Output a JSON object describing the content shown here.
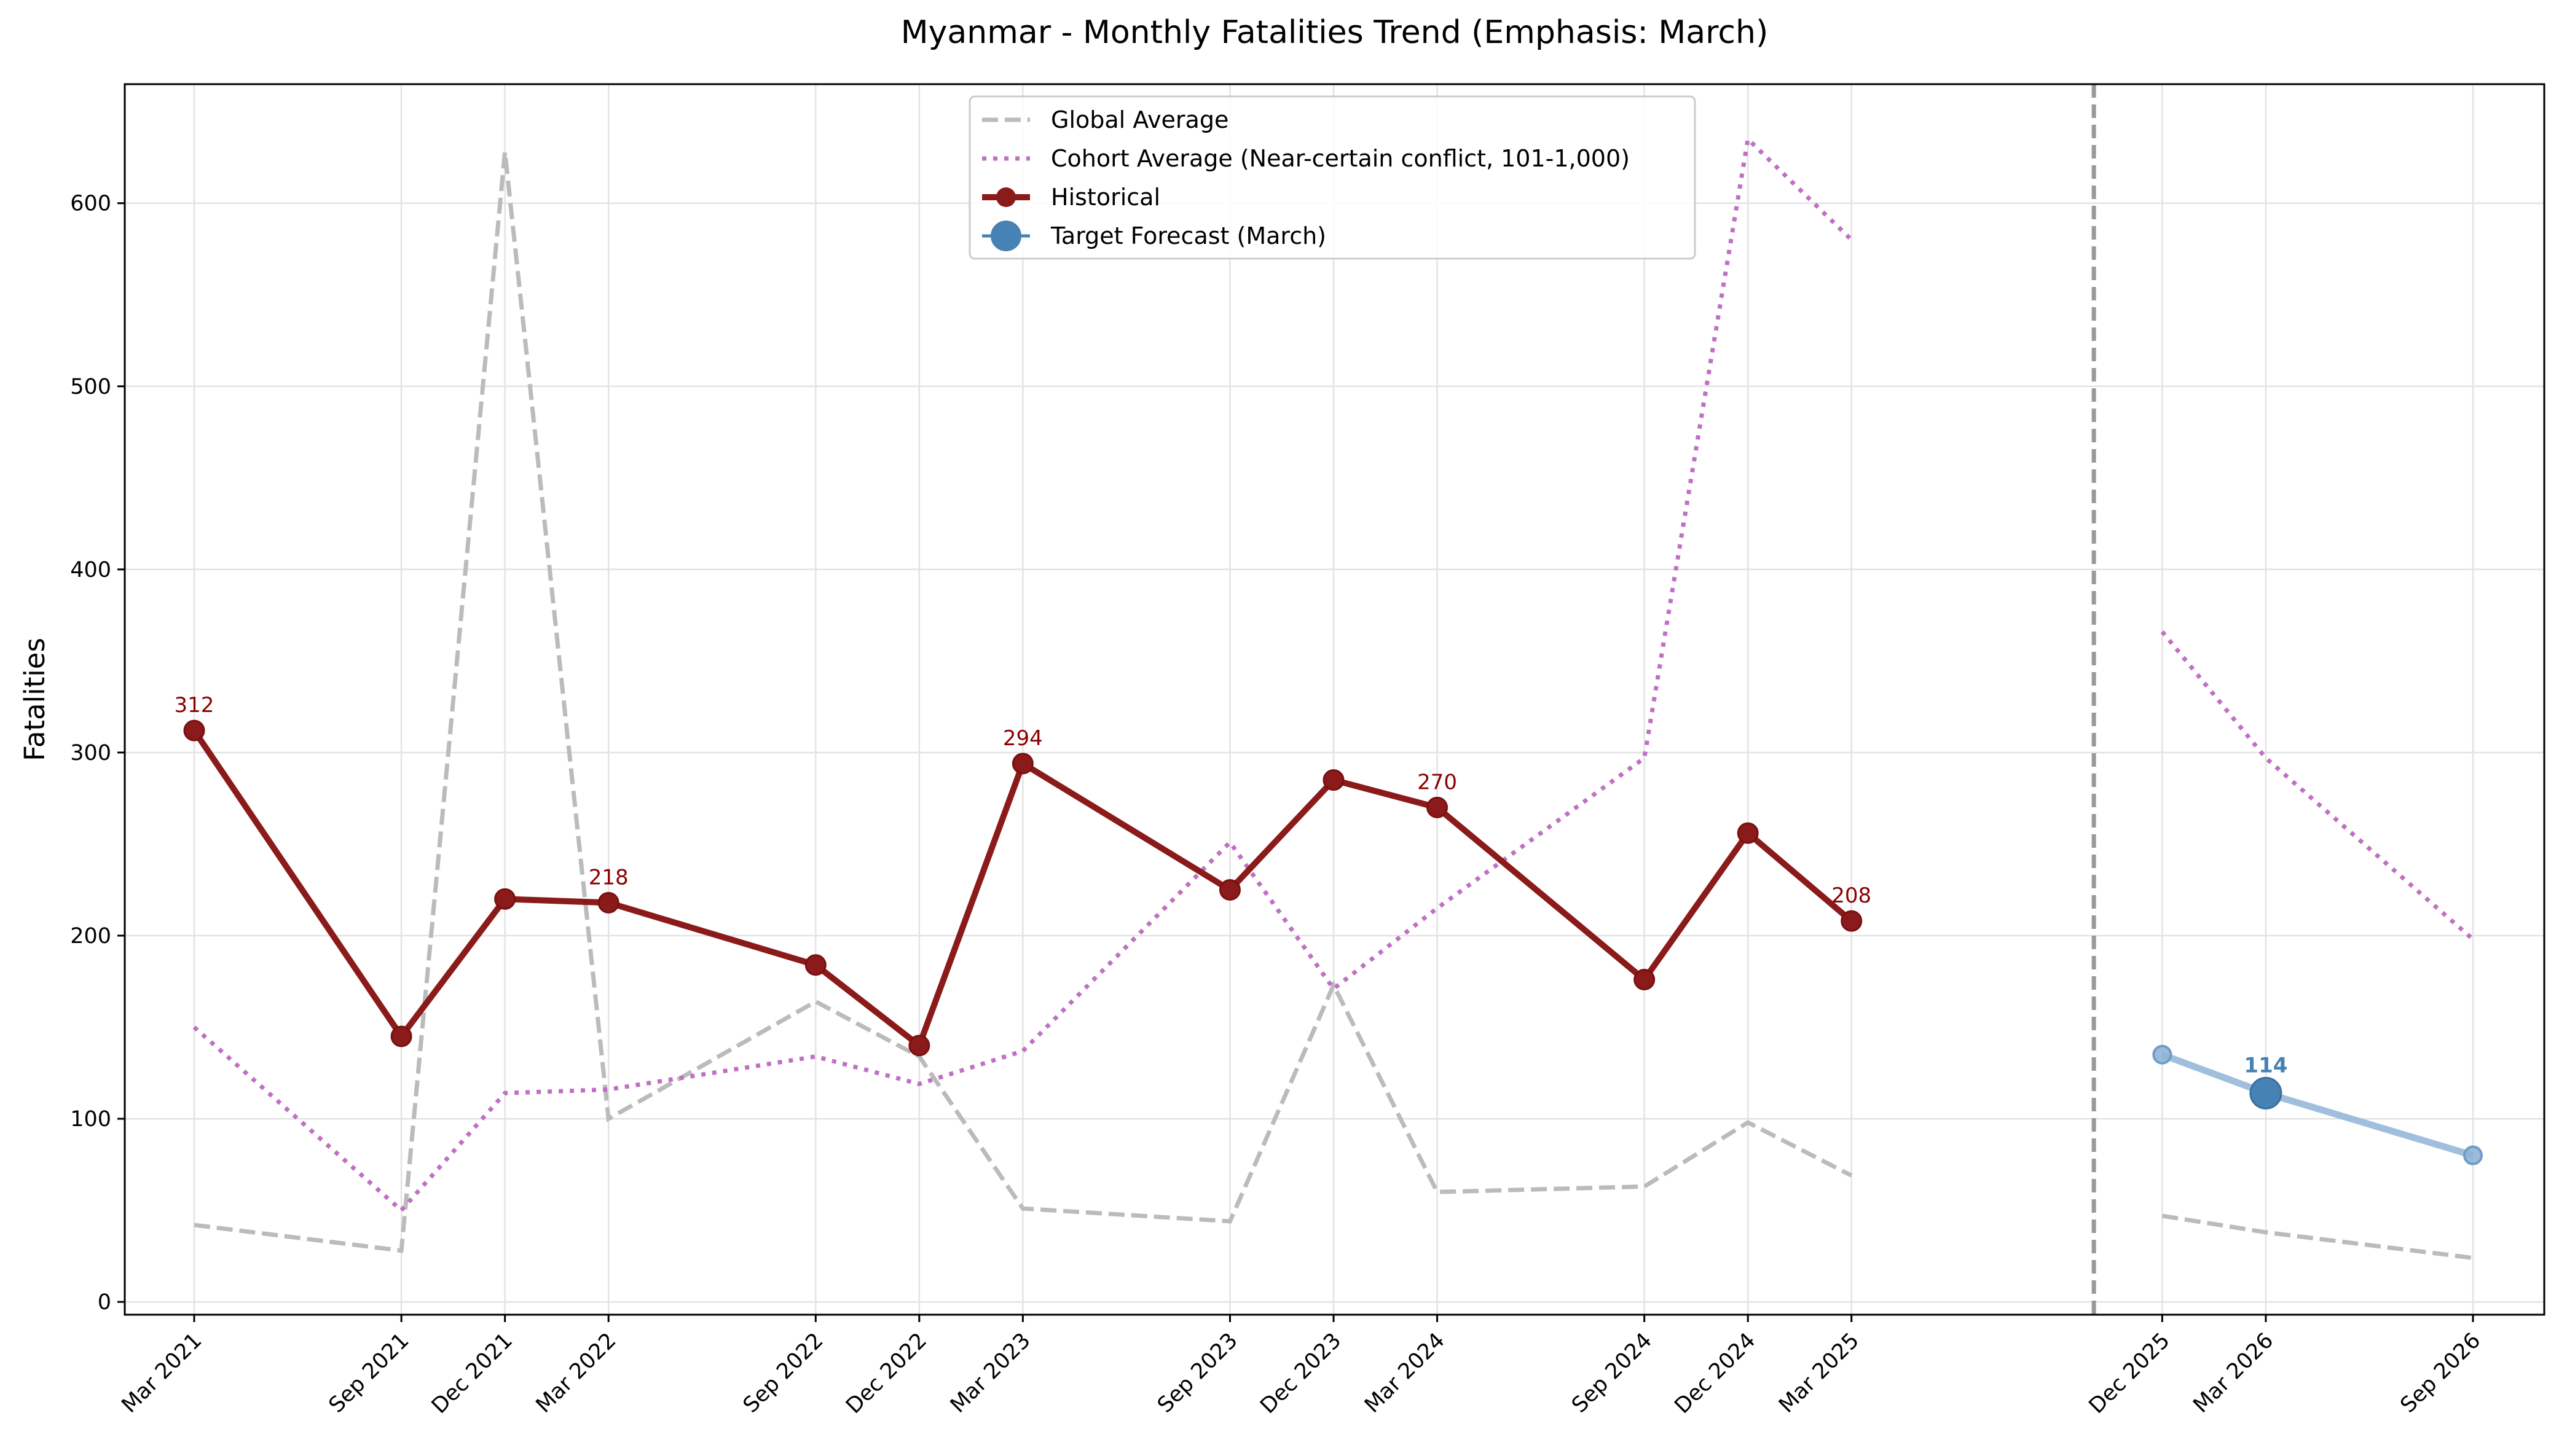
{
  "chart_data": {
    "type": "line",
    "title": "Myanmar - Monthly Fatalities Trend (Emphasis: March)",
    "ylabel": "Fatalities",
    "xlabel": "",
    "ylim": [
      -7,
      665
    ],
    "yticks": [
      0,
      100,
      200,
      300,
      400,
      500,
      600
    ],
    "grid": true,
    "legend_position": "top-center",
    "forecast_divider_label": "",
    "categories": [
      "Mar 2021",
      "Sep 2021",
      "Dec 2021",
      "Mar 2022",
      "Sep 2022",
      "Dec 2022",
      "Mar 2023",
      "Sep 2023",
      "Dec 2023",
      "Mar 2024",
      "Sep 2024",
      "Dec 2024",
      "Mar 2025",
      "Dec 2025",
      "Mar 2026",
      "Sep 2026"
    ],
    "series": [
      {
        "name": "Global Average",
        "style": "dashed",
        "color": "#bbbbbb",
        "x": [
          "Mar 2021",
          "Sep 2021",
          "Dec 2021",
          "Mar 2022",
          "Sep 2022",
          "Dec 2022",
          "Mar 2023",
          "Sep 2023",
          "Dec 2023",
          "Mar 2024",
          "Sep 2024",
          "Dec 2024",
          "Mar 2025"
        ],
        "values": [
          42,
          28,
          628,
          100,
          164,
          134,
          51,
          44,
          173,
          60,
          63,
          98,
          69
        ]
      },
      {
        "name": "Global Average",
        "style": "dashed",
        "color": "#bbbbbb",
        "legend": false,
        "x": [
          "Dec 2025",
          "Mar 2026",
          "Sep 2026"
        ],
        "values": [
          47,
          38,
          24
        ]
      },
      {
        "name": "Cohort Average (Near-certain conflict, 101-1,000)",
        "style": "dotted",
        "color": "#bf70c4",
        "x": [
          "Mar 2021",
          "Sep 2021",
          "Dec 2021",
          "Mar 2022",
          "Sep 2022",
          "Dec 2022",
          "Mar 2023",
          "Sep 2023",
          "Dec 2023",
          "Mar 2024",
          "Sep 2024",
          "Dec 2024",
          "Mar 2025"
        ],
        "values": [
          150,
          50,
          114,
          116,
          134,
          119,
          137,
          251,
          171,
          215,
          297,
          635,
          580
        ]
      },
      {
        "name": "Cohort Average (Near-certain conflict, 101-1,000)",
        "style": "dotted",
        "color": "#bf70c4",
        "legend": false,
        "x": [
          "Dec 2025",
          "Mar 2026",
          "Sep 2026"
        ],
        "values": [
          366,
          297,
          198
        ]
      },
      {
        "name": "Historical",
        "style": "solid-markers",
        "color": "#8b1a1a",
        "x": [
          "Mar 2021",
          "Sep 2021",
          "Dec 2021",
          "Mar 2022",
          "Sep 2022",
          "Dec 2022",
          "Mar 2023",
          "Sep 2023",
          "Dec 2023",
          "Mar 2024",
          "Sep 2024",
          "Dec 2024",
          "Mar 2025"
        ],
        "values": [
          312,
          145,
          220,
          218,
          184,
          140,
          294,
          225,
          285,
          270,
          176,
          256,
          208
        ]
      },
      {
        "name": "Forecast",
        "style": "light-line",
        "color": "#8fb4d6",
        "legend": false,
        "x": [
          "Dec 2025",
          "Mar 2026",
          "Sep 2026"
        ],
        "values": [
          135,
          114,
          80
        ]
      },
      {
        "name": "Target Forecast (March)",
        "style": "big-marker",
        "color": "#4682b4",
        "x": [
          "Mar 2026"
        ],
        "values": [
          114
        ]
      }
    ],
    "annotations": [
      {
        "x": "Mar 2021",
        "y": 312,
        "text": "312",
        "color": "#8b0000"
      },
      {
        "x": "Mar 2022",
        "y": 218,
        "text": "218",
        "color": "#8b0000"
      },
      {
        "x": "Mar 2023",
        "y": 294,
        "text": "294",
        "color": "#8b0000"
      },
      {
        "x": "Mar 2024",
        "y": 270,
        "text": "270",
        "color": "#8b0000"
      },
      {
        "x": "Mar 2025",
        "y": 208,
        "text": "208",
        "color": "#8b0000"
      },
      {
        "x": "Mar 2026",
        "y": 114,
        "text": "114",
        "color": "#4682b4",
        "bold": true
      }
    ]
  }
}
